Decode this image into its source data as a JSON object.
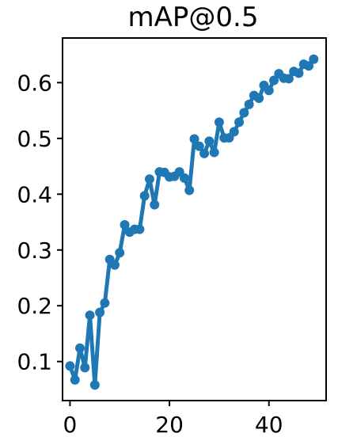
{
  "chart_data": {
    "type": "line",
    "title": "mAP@0.5",
    "xlabel": "",
    "ylabel": "",
    "xlim": [
      -1.5,
      51.5
    ],
    "ylim": [
      0.03,
      0.68
    ],
    "x_ticks": [
      0,
      20,
      40
    ],
    "y_ticks": [
      0.1,
      0.2,
      0.3,
      0.4,
      0.5,
      0.6
    ],
    "x_tick_labels": [
      "0",
      "20",
      "40"
    ],
    "y_tick_labels": [
      "0.1",
      "0.2",
      "0.3",
      "0.4",
      "0.5",
      "0.6"
    ],
    "grid": false,
    "legend": "none",
    "series": [
      {
        "color": "#1f77b4",
        "marker": "circle",
        "x": [
          0,
          1,
          2,
          3,
          4,
          5,
          6,
          7,
          8,
          9,
          10,
          11,
          12,
          13,
          14,
          15,
          16,
          17,
          18,
          19,
          20,
          21,
          22,
          23,
          24,
          25,
          26,
          27,
          28,
          29,
          30,
          31,
          32,
          33,
          34,
          35,
          36,
          37,
          38,
          39,
          40,
          41,
          42,
          43,
          44,
          45,
          46,
          47,
          48,
          49
        ],
        "values": [
          0.092,
          0.067,
          0.124,
          0.089,
          0.183,
          0.058,
          0.188,
          0.205,
          0.283,
          0.273,
          0.295,
          0.345,
          0.332,
          0.337,
          0.337,
          0.397,
          0.427,
          0.381,
          0.44,
          0.439,
          0.431,
          0.432,
          0.44,
          0.429,
          0.407,
          0.499,
          0.486,
          0.473,
          0.495,
          0.475,
          0.529,
          0.501,
          0.501,
          0.512,
          0.529,
          0.546,
          0.561,
          0.577,
          0.572,
          0.595,
          0.586,
          0.604,
          0.616,
          0.608,
          0.607,
          0.62,
          0.617,
          0.633,
          0.63,
          0.642
        ]
      }
    ]
  }
}
